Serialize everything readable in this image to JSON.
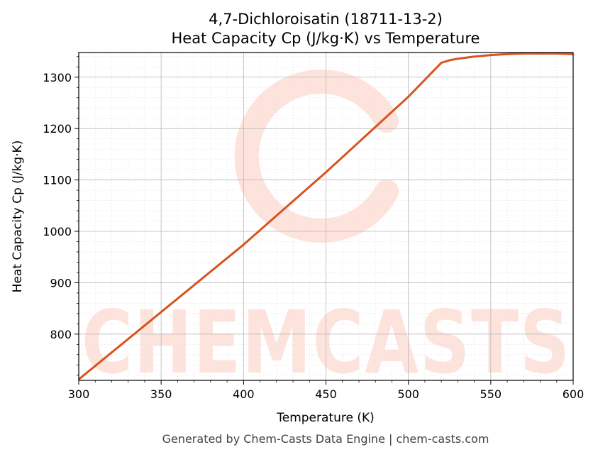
{
  "chart_data": {
    "type": "line",
    "title": "4,7-Dichloroisatin (18711-13-2)",
    "subtitle": "Heat Capacity Cp (J/kg·K) vs Temperature",
    "xlabel": "Temperature (K)",
    "ylabel": "Heat Capacity Cp (J/kg·K)",
    "xlim": [
      300,
      600
    ],
    "ylim": [
      710,
      1348
    ],
    "x_ticks": [
      300,
      350,
      400,
      450,
      500,
      550,
      600
    ],
    "y_ticks": [
      800,
      900,
      1000,
      1100,
      1200,
      1300
    ],
    "grid": true,
    "series": [
      {
        "color": "#d9531e",
        "x": [
          300,
          350,
          400,
          450,
          500,
          520,
          525,
          530,
          540,
          550,
          560,
          570,
          580,
          590,
          600
        ],
        "y": [
          712,
          843,
          974,
          1115,
          1262,
          1328,
          1333,
          1336,
          1340,
          1343,
          1345,
          1346,
          1346,
          1346,
          1345
        ]
      }
    ]
  },
  "watermark": {
    "text": "CHEMCASTS",
    "color": "#fde3dc"
  },
  "footer": "Generated by Chem-Casts Data Engine | chem-casts.com"
}
